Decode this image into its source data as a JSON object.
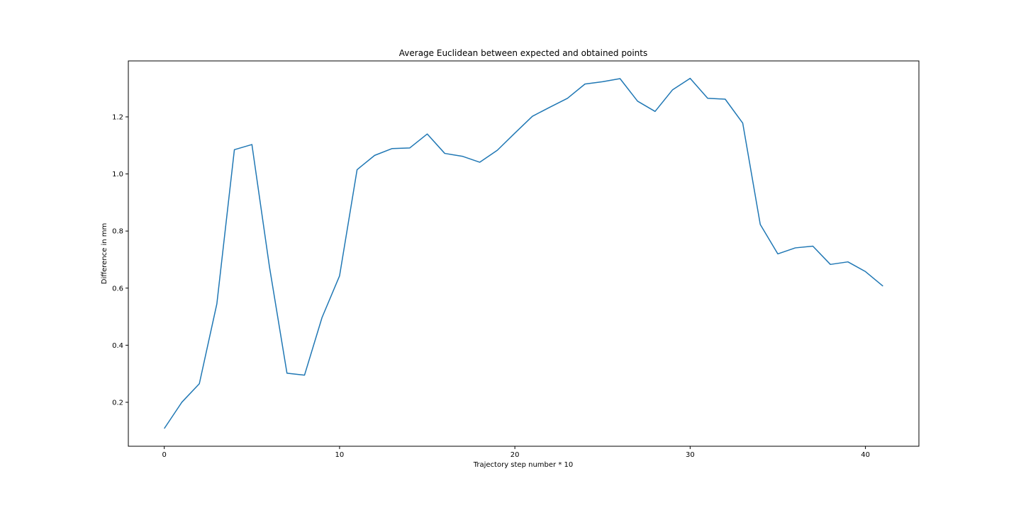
{
  "chart_data": {
    "type": "line",
    "title": "Average Euclidean between expected and obtained points",
    "xlabel": "Trajectory step number * 10",
    "ylabel": "Difference in mm",
    "xlim": [
      -2.05,
      43.05
    ],
    "ylim": [
      0.046,
      1.396
    ],
    "xticks": [
      0,
      10,
      20,
      30,
      40
    ],
    "xtick_labels": [
      "0",
      "10",
      "20",
      "30",
      "40"
    ],
    "yticks": [
      0.2,
      0.4,
      0.6,
      0.8,
      1.0,
      1.2
    ],
    "ytick_labels": [
      "0.2",
      "0.4",
      "0.6",
      "0.8",
      "1.0",
      "1.2"
    ],
    "grid": false,
    "legend": "none",
    "series": [
      {
        "color": "#1f77b4",
        "x": [
          0,
          1,
          2,
          3,
          4,
          5,
          6,
          7,
          8,
          9,
          10,
          11,
          12,
          13,
          14,
          15,
          16,
          17,
          18,
          19,
          20,
          21,
          22,
          23,
          24,
          25,
          26,
          27,
          28,
          29,
          30,
          31,
          32,
          33,
          34,
          35,
          36,
          37,
          38,
          39,
          40,
          41
        ],
        "values": [
          0.108,
          0.2,
          0.265,
          0.545,
          1.085,
          1.103,
          0.675,
          0.302,
          0.295,
          0.497,
          0.643,
          1.015,
          1.065,
          1.089,
          1.091,
          1.14,
          1.072,
          1.062,
          1.041,
          1.083,
          1.143,
          1.202,
          1.234,
          1.265,
          1.315,
          1.323,
          1.334,
          1.255,
          1.219,
          1.295,
          1.335,
          1.265,
          1.262,
          1.178,
          0.823,
          0.72,
          0.741,
          0.747,
          0.683,
          0.692,
          0.658,
          0.607
        ]
      }
    ]
  }
}
